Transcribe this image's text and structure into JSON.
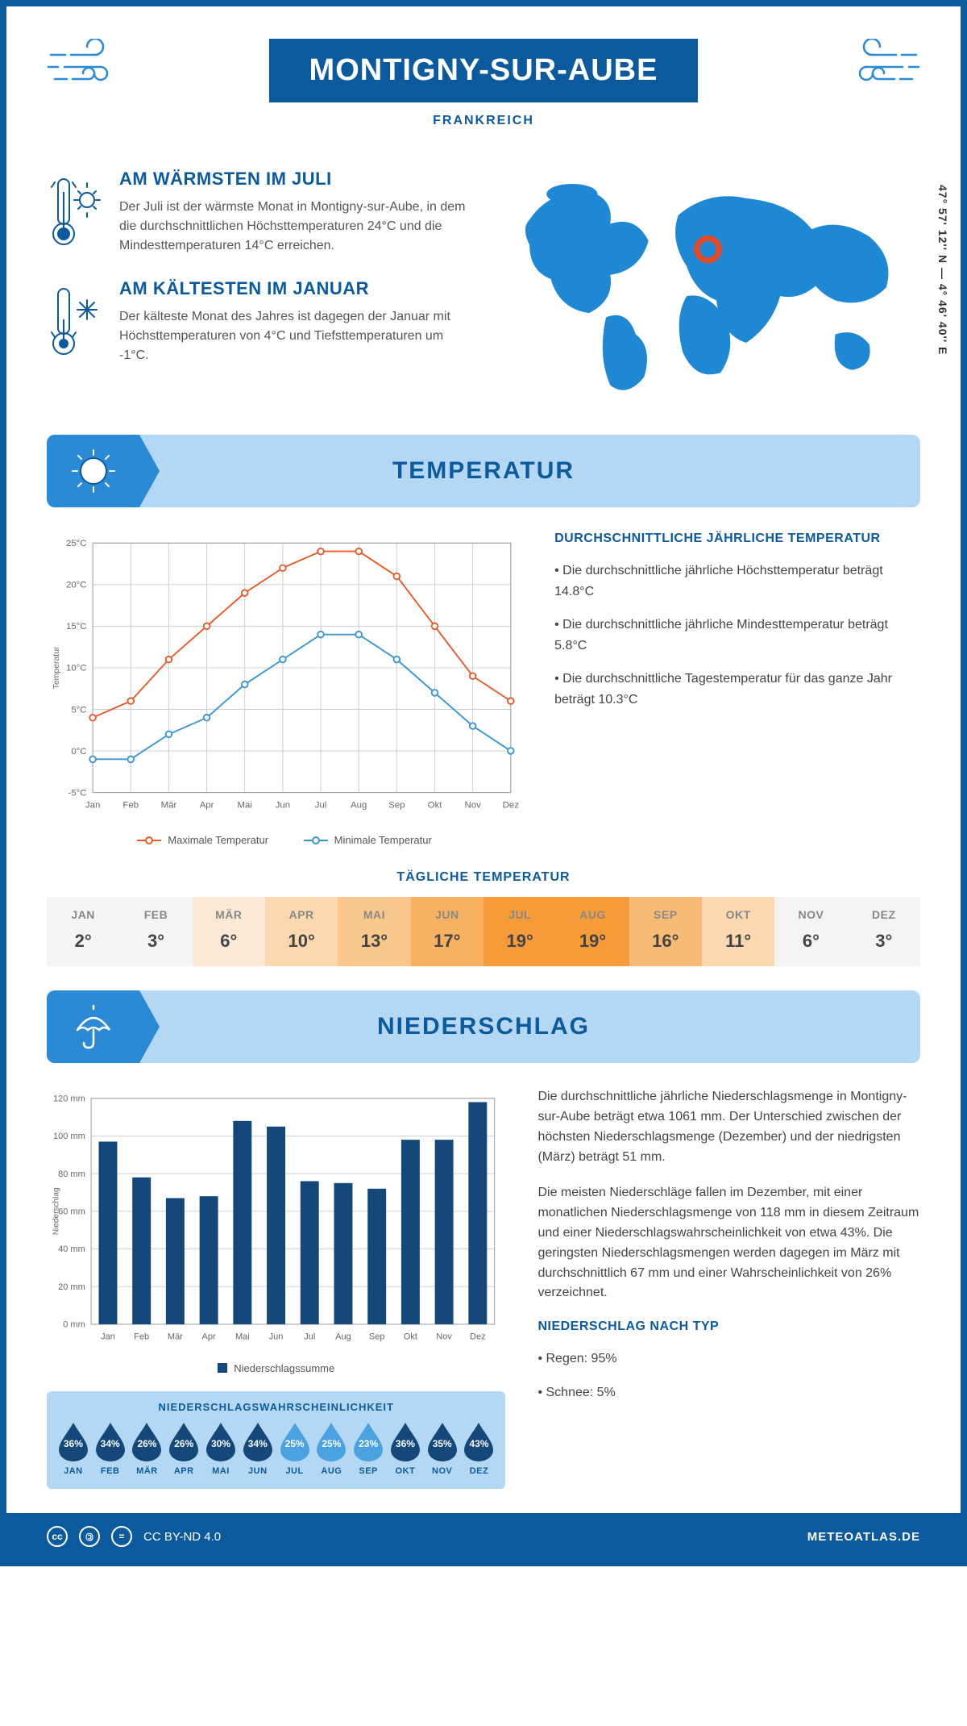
{
  "colors": {
    "primary": "#0b5a9e",
    "light_blue": "#b4d8f3",
    "mid_blue": "#2a8ad6",
    "map_blue": "#1e88d4",
    "marker_red": "#e34a2a",
    "line_max": "#e85c2b",
    "line_min": "#3a97d6",
    "bar_fill": "#14477a",
    "grid": "#cccccc",
    "text_grey": "#555555"
  },
  "header": {
    "title": "MONTIGNY-SUR-AUBE",
    "country": "FRANKREICH",
    "coords": "47° 57' 12'' N — 4° 46' 40'' E"
  },
  "facts": {
    "warm": {
      "title": "AM WÄRMSTEN IM JULI",
      "text": "Der Juli ist der wärmste Monat in Montigny-sur-Aube, in dem die durchschnittlichen Höchsttemperaturen 24°C und die Mindesttemperaturen 14°C erreichen."
    },
    "cold": {
      "title": "AM KÄLTESTEN IM JANUAR",
      "text": "Der kälteste Monat des Jahres ist dagegen der Januar mit Höchsttemperaturen von 4°C und Tiefsttemperaturen um -1°C."
    }
  },
  "sections": {
    "temperature": "TEMPERATUR",
    "precipitation": "NIEDERSCHLAG"
  },
  "temp_chart": {
    "type": "line",
    "ylabel": "Temperatur",
    "ylabel_fontsize": 11,
    "xticks": [
      "Jan",
      "Feb",
      "Mär",
      "Apr",
      "Mai",
      "Jun",
      "Jul",
      "Aug",
      "Sep",
      "Okt",
      "Nov",
      "Dez"
    ],
    "ylim": [
      -5,
      25
    ],
    "ytick_step": 5,
    "ytick_suffix": "°C",
    "grid_color": "#cccccc",
    "background": "#ffffff",
    "line_width": 2,
    "marker_style": "circle-open",
    "series": {
      "max": {
        "label": "Maximale Temperatur",
        "color": "#e85c2b",
        "values": [
          4,
          6,
          11,
          15,
          19,
          22,
          24,
          24,
          21,
          15,
          9,
          6
        ]
      },
      "min": {
        "label": "Minimale Temperatur",
        "color": "#3a97d6",
        "values": [
          -1,
          -1,
          2,
          4,
          8,
          11,
          14,
          14,
          11,
          7,
          3,
          0
        ]
      }
    }
  },
  "temp_summary": {
    "heading": "DURCHSCHNITTLICHE JÄHRLICHE TEMPERATUR",
    "bullets": [
      "• Die durchschnittliche jährliche Höchsttemperatur beträgt 14.8°C",
      "• Die durchschnittliche jährliche Mindesttemperatur beträgt 5.8°C",
      "• Die durchschnittliche Tagestemperatur für das ganze Jahr beträgt 10.3°C"
    ]
  },
  "daily_temp": {
    "title": "TÄGLICHE TEMPERATUR",
    "months": [
      "JAN",
      "FEB",
      "MÄR",
      "APR",
      "MAI",
      "JUN",
      "JUL",
      "AUG",
      "SEP",
      "OKT",
      "NOV",
      "DEZ"
    ],
    "values": [
      "2°",
      "3°",
      "6°",
      "10°",
      "13°",
      "17°",
      "19°",
      "19°",
      "16°",
      "11°",
      "6°",
      "3°"
    ],
    "cell_colors": [
      "#f4f4f4",
      "#f4f4f4",
      "#fce9d5",
      "#fbd8af",
      "#f9c78a",
      "#f7b261",
      "#f59b3a",
      "#f59b3a",
      "#f8bb76",
      "#fbd8af",
      "#f4f4f4",
      "#f4f4f4"
    ]
  },
  "precip_chart": {
    "type": "bar",
    "ylabel": "Niederschlag",
    "ylabel_fontsize": 11,
    "xticks": [
      "Jan",
      "Feb",
      "Mär",
      "Apr",
      "Mai",
      "Jun",
      "Jul",
      "Aug",
      "Sep",
      "Okt",
      "Nov",
      "Dez"
    ],
    "ylim": [
      0,
      120
    ],
    "ytick_step": 20,
    "ytick_suffix": " mm",
    "bar_color": "#14477a",
    "bar_width": 0.55,
    "grid_color": "#cccccc",
    "legend_label": "Niederschlagssumme",
    "values": [
      97,
      78,
      67,
      68,
      108,
      105,
      76,
      75,
      72,
      98,
      98,
      118
    ]
  },
  "precip_text": {
    "p1": "Die durchschnittliche jährliche Niederschlagsmenge in Montigny-sur-Aube beträgt etwa 1061 mm. Der Unterschied zwischen der höchsten Niederschlagsmenge (Dezember) und der niedrigsten (März) beträgt 51 mm.",
    "p2": "Die meisten Niederschläge fallen im Dezember, mit einer monatlichen Niederschlagsmenge von 118 mm in diesem Zeitraum und einer Niederschlagswahrscheinlichkeit von etwa 43%. Die geringsten Niederschlagsmengen werden dagegen im März mit durchschnittlich 67 mm und einer Wahrscheinlichkeit von 26% verzeichnet.",
    "type_heading": "NIEDERSCHLAG NACH TYP",
    "type_bullets": [
      "• Regen: 95%",
      "• Schnee: 5%"
    ]
  },
  "probability": {
    "title": "NIEDERSCHLAGSWAHRSCHEINLICHKEIT",
    "months": [
      "JAN",
      "FEB",
      "MÄR",
      "APR",
      "MAI",
      "JUN",
      "JUL",
      "AUG",
      "SEP",
      "OKT",
      "NOV",
      "DEZ"
    ],
    "values": [
      "36%",
      "34%",
      "26%",
      "26%",
      "30%",
      "34%",
      "25%",
      "25%",
      "23%",
      "36%",
      "35%",
      "43%"
    ],
    "drop_colors": [
      "#14477a",
      "#14477a",
      "#14477a",
      "#14477a",
      "#14477a",
      "#14477a",
      "#4aa3e0",
      "#4aa3e0",
      "#4aa3e0",
      "#14477a",
      "#14477a",
      "#14477a"
    ]
  },
  "footer": {
    "license": "CC BY-ND 4.0",
    "site": "METEOATLAS.DE"
  }
}
